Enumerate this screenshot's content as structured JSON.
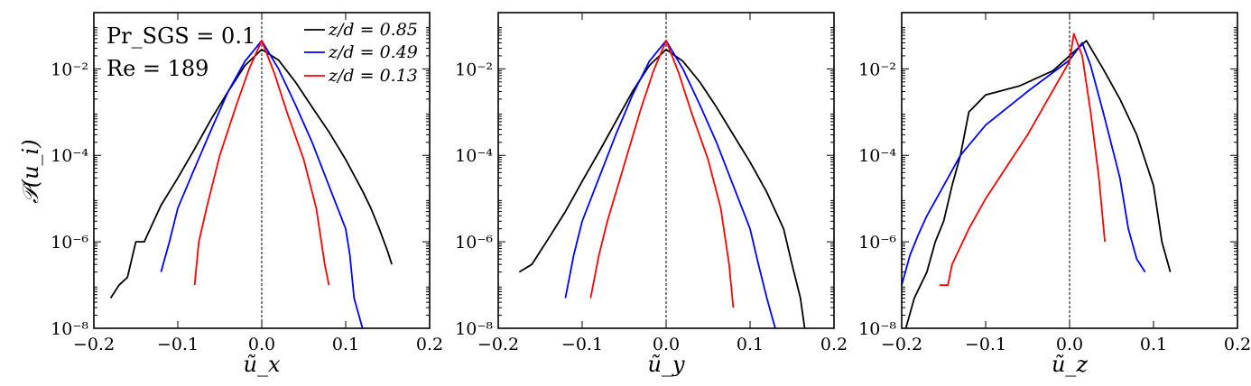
{
  "chart_data": [
    {
      "type": "line",
      "xlabel": "ũ_x",
      "ylabel": "𝒫(u_i)",
      "xlim": [
        -0.2,
        0.2
      ],
      "ylim": [
        1e-08,
        0.2
      ],
      "yscale": "log",
      "x_ticks": [
        "−0.2",
        "−0.1",
        "0.0",
        "0.1",
        "0.2"
      ],
      "y_ticks": [
        "10⁻⁸",
        "10⁻⁶",
        "10⁻⁴",
        "10⁻²"
      ],
      "annotations": [
        "Pr_SGS = 0.1",
        "Re = 189"
      ],
      "legend": {
        "placement": "top-right"
      },
      "reference_line": {
        "x": 0.0,
        "style": "dashed"
      },
      "series": [
        {
          "name": "z/d = 0.85",
          "color": "#000000",
          "x": [
            -0.18,
            -0.17,
            -0.16,
            -0.15,
            -0.14,
            -0.12,
            -0.1,
            -0.08,
            -0.06,
            -0.04,
            -0.02,
            0.0,
            0.02,
            0.04,
            0.06,
            0.08,
            0.1,
            0.12,
            0.13,
            0.14,
            0.15,
            0.155
          ],
          "y": [
            5e-08,
            1e-07,
            1.5e-07,
            1e-06,
            1e-06,
            7e-06,
            3e-05,
            0.00014,
            0.0007,
            0.003,
            0.012,
            0.028,
            0.016,
            0.005,
            0.0013,
            0.00035,
            8e-05,
            1.5e-05,
            6e-06,
            2e-06,
            6e-07,
            3e-07
          ]
        },
        {
          "name": "z/d = 0.49",
          "color": "#0000ff",
          "x": [
            -0.12,
            -0.11,
            -0.1,
            -0.08,
            -0.06,
            -0.04,
            -0.02,
            0.0,
            0.02,
            0.04,
            0.06,
            0.08,
            0.1,
            0.105,
            0.11,
            0.12
          ],
          "y": [
            2e-07,
            1e-06,
            6e-06,
            5e-05,
            0.0004,
            0.003,
            0.015,
            0.045,
            0.01,
            0.0015,
            0.0002,
            2e-05,
            2e-06,
            5e-07,
            5e-08,
            1e-08
          ]
        },
        {
          "name": "z/d = 0.13",
          "color": "#ff0000",
          "x": [
            -0.08,
            -0.075,
            -0.065,
            -0.05,
            -0.03,
            -0.015,
            0.0,
            0.015,
            0.03,
            0.05,
            0.065,
            0.075,
            0.08
          ],
          "y": [
            1e-07,
            1e-06,
            7e-06,
            0.0001,
            0.0015,
            0.01,
            0.045,
            0.008,
            0.001,
            8e-05,
            6e-06,
            3e-07,
            1e-07
          ]
        }
      ]
    },
    {
      "type": "line",
      "xlabel": "ũ_y",
      "xlim": [
        -0.2,
        0.2
      ],
      "ylim": [
        1e-08,
        0.2
      ],
      "yscale": "log",
      "x_ticks": [
        "−0.2",
        "−0.1",
        "0.0",
        "0.1",
        "0.2"
      ],
      "y_ticks": [
        "10⁻⁸",
        "10⁻⁶",
        "10⁻⁴",
        "10⁻²"
      ],
      "reference_line": {
        "x": 0.0,
        "style": "dashed"
      },
      "series": [
        {
          "name": "z/d = 0.85",
          "color": "#000000",
          "x": [
            -0.175,
            -0.16,
            -0.15,
            -0.14,
            -0.12,
            -0.1,
            -0.08,
            -0.06,
            -0.04,
            -0.02,
            0.0,
            0.02,
            0.04,
            0.06,
            0.08,
            0.1,
            0.12,
            0.14,
            0.15,
            0.16,
            0.165
          ],
          "y": [
            2e-07,
            3e-07,
            6e-07,
            1.2e-06,
            5e-06,
            2.5e-05,
            0.00012,
            0.0006,
            0.003,
            0.012,
            0.028,
            0.015,
            0.005,
            0.0013,
            0.0003,
            7e-05,
            1.4e-05,
            2e-06,
            3e-07,
            5e-08,
            1e-08
          ]
        },
        {
          "name": "z/d = 0.49",
          "color": "#0000ff",
          "x": [
            -0.12,
            -0.11,
            -0.1,
            -0.08,
            -0.06,
            -0.04,
            -0.02,
            0.0,
            0.02,
            0.04,
            0.06,
            0.08,
            0.1,
            0.11,
            0.12,
            0.13
          ],
          "y": [
            5e-08,
            5e-07,
            3e-06,
            3e-05,
            0.0003,
            0.0025,
            0.015,
            0.045,
            0.01,
            0.0015,
            0.0002,
            2e-05,
            2e-06,
            3e-07,
            5e-08,
            1e-08
          ]
        },
        {
          "name": "z/d = 0.13",
          "color": "#ff0000",
          "x": [
            -0.09,
            -0.08,
            -0.07,
            -0.05,
            -0.03,
            -0.015,
            0.0,
            0.015,
            0.03,
            0.05,
            0.065,
            0.075,
            0.08
          ],
          "y": [
            5e-08,
            5e-07,
            3e-06,
            6e-05,
            0.0012,
            0.009,
            0.045,
            0.008,
            0.001,
            8e-05,
            6e-06,
            3e-07,
            3e-08
          ]
        }
      ]
    },
    {
      "type": "line",
      "xlabel": "ũ_z",
      "xlim": [
        -0.2,
        0.2
      ],
      "ylim": [
        1e-08,
        0.2
      ],
      "yscale": "log",
      "x_ticks": [
        "−0.2",
        "−0.1",
        "0.0",
        "0.1",
        "0.2"
      ],
      "y_ticks": [
        "10⁻⁸",
        "10⁻⁶",
        "10⁻⁴",
        "10⁻²"
      ],
      "reference_line": {
        "x": 0.0,
        "style": "dashed"
      },
      "series": [
        {
          "name": "z/d = 0.85",
          "color": "#000000",
          "x": [
            -0.195,
            -0.185,
            -0.17,
            -0.16,
            -0.15,
            -0.14,
            -0.13,
            -0.12,
            -0.1,
            -0.06,
            -0.02,
            0.0,
            0.02,
            0.04,
            0.06,
            0.08,
            0.1,
            0.11,
            0.12
          ],
          "y": [
            1e-08,
            5e-08,
            2e-07,
            1e-06,
            3e-06,
            2e-05,
            0.0001,
            0.001,
            0.0025,
            0.004,
            0.009,
            0.02,
            0.045,
            0.01,
            0.002,
            0.0003,
            2e-05,
            1e-06,
            2e-07
          ]
        },
        {
          "name": "z/d = 0.49",
          "color": "#0000ff",
          "x": [
            -0.2,
            -0.19,
            -0.18,
            -0.17,
            -0.15,
            -0.13,
            -0.1,
            -0.05,
            0.0,
            0.015,
            0.025,
            0.04,
            0.06,
            0.07,
            0.08,
            0.09
          ],
          "y": [
            1e-07,
            5e-07,
            1.5e-06,
            4e-06,
            2e-05,
            0.0001,
            0.0005,
            0.003,
            0.016,
            0.04,
            0.012,
            0.001,
            3e-05,
            2e-06,
            4e-07,
            2e-07
          ]
        },
        {
          "name": "z/d = 0.13",
          "color": "#ff0000",
          "x": [
            -0.155,
            -0.145,
            -0.14,
            -0.12,
            -0.1,
            -0.05,
            0.0,
            0.005,
            0.015,
            0.025,
            0.035,
            0.042
          ],
          "y": [
            1e-07,
            1e-07,
            3e-07,
            2e-06,
            1e-05,
            0.0003,
            0.015,
            0.065,
            0.02,
            0.001,
            3e-05,
            1e-06
          ]
        }
      ]
    }
  ]
}
